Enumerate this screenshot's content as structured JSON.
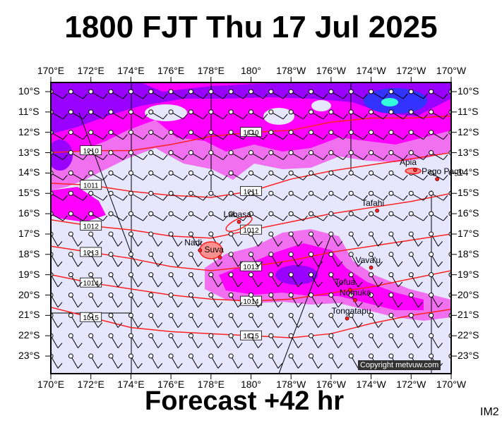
{
  "header": {
    "title": "1800 FJT Thu 17 Jul 2025"
  },
  "footer": {
    "forecast": "Forecast +42 hr",
    "code": "IM2"
  },
  "copyright": "Copyright metvuw.com",
  "axes": {
    "lon_labels": [
      "170°E",
      "172°E",
      "174°E",
      "176°E",
      "178°E",
      "180°",
      "178°W",
      "176°W",
      "174°W",
      "172°W",
      "170°W"
    ],
    "lat_labels": [
      "10°S",
      "11°S",
      "12°S",
      "13°S",
      "14°S",
      "15°S",
      "16°S",
      "17°S",
      "18°S",
      "19°S",
      "20°S",
      "21°S",
      "22°S",
      "23°S"
    ]
  },
  "places": [
    {
      "name": "Apia",
      "lon": -171.8,
      "lat": -13.85
    },
    {
      "name": "Pago Pago",
      "lon": -170.7,
      "lat": -14.3
    },
    {
      "name": "Tafahi",
      "lon": -173.7,
      "lat": -15.85
    },
    {
      "name": "Labasa",
      "lon": 179.4,
      "lat": -16.4
    },
    {
      "name": "Nadi",
      "lon": 177.45,
      "lat": -17.8
    },
    {
      "name": "Suva",
      "lon": 178.45,
      "lat": -18.15
    },
    {
      "name": "Vava'u",
      "lon": -174.0,
      "lat": -18.65
    },
    {
      "name": "Tofua",
      "lon": -175.05,
      "lat": -19.75
    },
    {
      "name": "Nomuka",
      "lon": -174.8,
      "lat": -20.25
    },
    {
      "name": "Tongatapu",
      "lon": -175.2,
      "lat": -21.15
    }
  ],
  "isobars": [
    {
      "label": "1010",
      "points": [
        [
          170,
          -13
        ],
        [
          172,
          -12.9
        ],
        [
          174,
          -12.9
        ],
        [
          176,
          -12.6
        ],
        [
          178,
          -12.2
        ],
        [
          180,
          -12
        ],
        [
          182,
          -11.9
        ],
        [
          184,
          -11.5
        ],
        [
          186,
          -11.3
        ],
        [
          188,
          -11.3
        ],
        [
          190,
          -11.2
        ]
      ]
    },
    {
      "label": "1011",
      "points": [
        [
          170,
          -14.5
        ],
        [
          172,
          -14.6
        ],
        [
          174,
          -14.9
        ],
        [
          176,
          -15.1
        ],
        [
          178,
          -15.2
        ],
        [
          180,
          -14.9
        ],
        [
          182,
          -14.3
        ],
        [
          184,
          -13.9
        ],
        [
          186,
          -13.6
        ],
        [
          188,
          -13.3
        ],
        [
          190,
          -13
        ]
      ]
    },
    {
      "label": "1012",
      "points": [
        [
          170,
          -16.3
        ],
        [
          172,
          -16.6
        ],
        [
          174,
          -16.8
        ],
        [
          176,
          -17.1
        ],
        [
          178,
          -17.2
        ],
        [
          180,
          -16.8
        ],
        [
          182,
          -16.4
        ],
        [
          184,
          -16
        ],
        [
          186,
          -15.7
        ],
        [
          188,
          -15.4
        ],
        [
          190,
          -15
        ]
      ]
    },
    {
      "label": "1013",
      "points": [
        [
          170,
          -17.6
        ],
        [
          172,
          -17.9
        ],
        [
          174,
          -18.2
        ],
        [
          176,
          -18.6
        ],
        [
          178,
          -18.8
        ],
        [
          180,
          -18.6
        ],
        [
          182,
          -18.3
        ],
        [
          184,
          -17.9
        ],
        [
          186,
          -17.6
        ],
        [
          188,
          -17.3
        ],
        [
          190,
          -17
        ]
      ]
    },
    {
      "label": "1014",
      "points": [
        [
          170,
          -19
        ],
        [
          172,
          -19.4
        ],
        [
          174,
          -19.7
        ],
        [
          176,
          -20
        ],
        [
          178,
          -20.2
        ],
        [
          180,
          -20.3
        ],
        [
          182,
          -20.2
        ],
        [
          184,
          -19.9
        ],
        [
          186,
          -19.6
        ],
        [
          188,
          -19.2
        ],
        [
          190,
          -18.8
        ]
      ]
    },
    {
      "label": "1015",
      "points": [
        [
          170,
          -20.6
        ],
        [
          172,
          -21.1
        ],
        [
          174,
          -21.6
        ],
        [
          176,
          -21.8
        ],
        [
          178,
          -21.9
        ],
        [
          180,
          -22
        ],
        [
          182,
          -22.1
        ],
        [
          184,
          -21.9
        ],
        [
          186,
          -21.4
        ],
        [
          188,
          -21
        ],
        [
          190,
          -20.7
        ]
      ]
    }
  ],
  "colors": {
    "background": "#e6e6ff",
    "rain_light": "#f070f0",
    "rain_mid": "#ff00ff",
    "rain_heavy": "#9900ff",
    "rain_max": "#3333ff",
    "isobar": "#ff2020",
    "land": "#ff2020"
  }
}
